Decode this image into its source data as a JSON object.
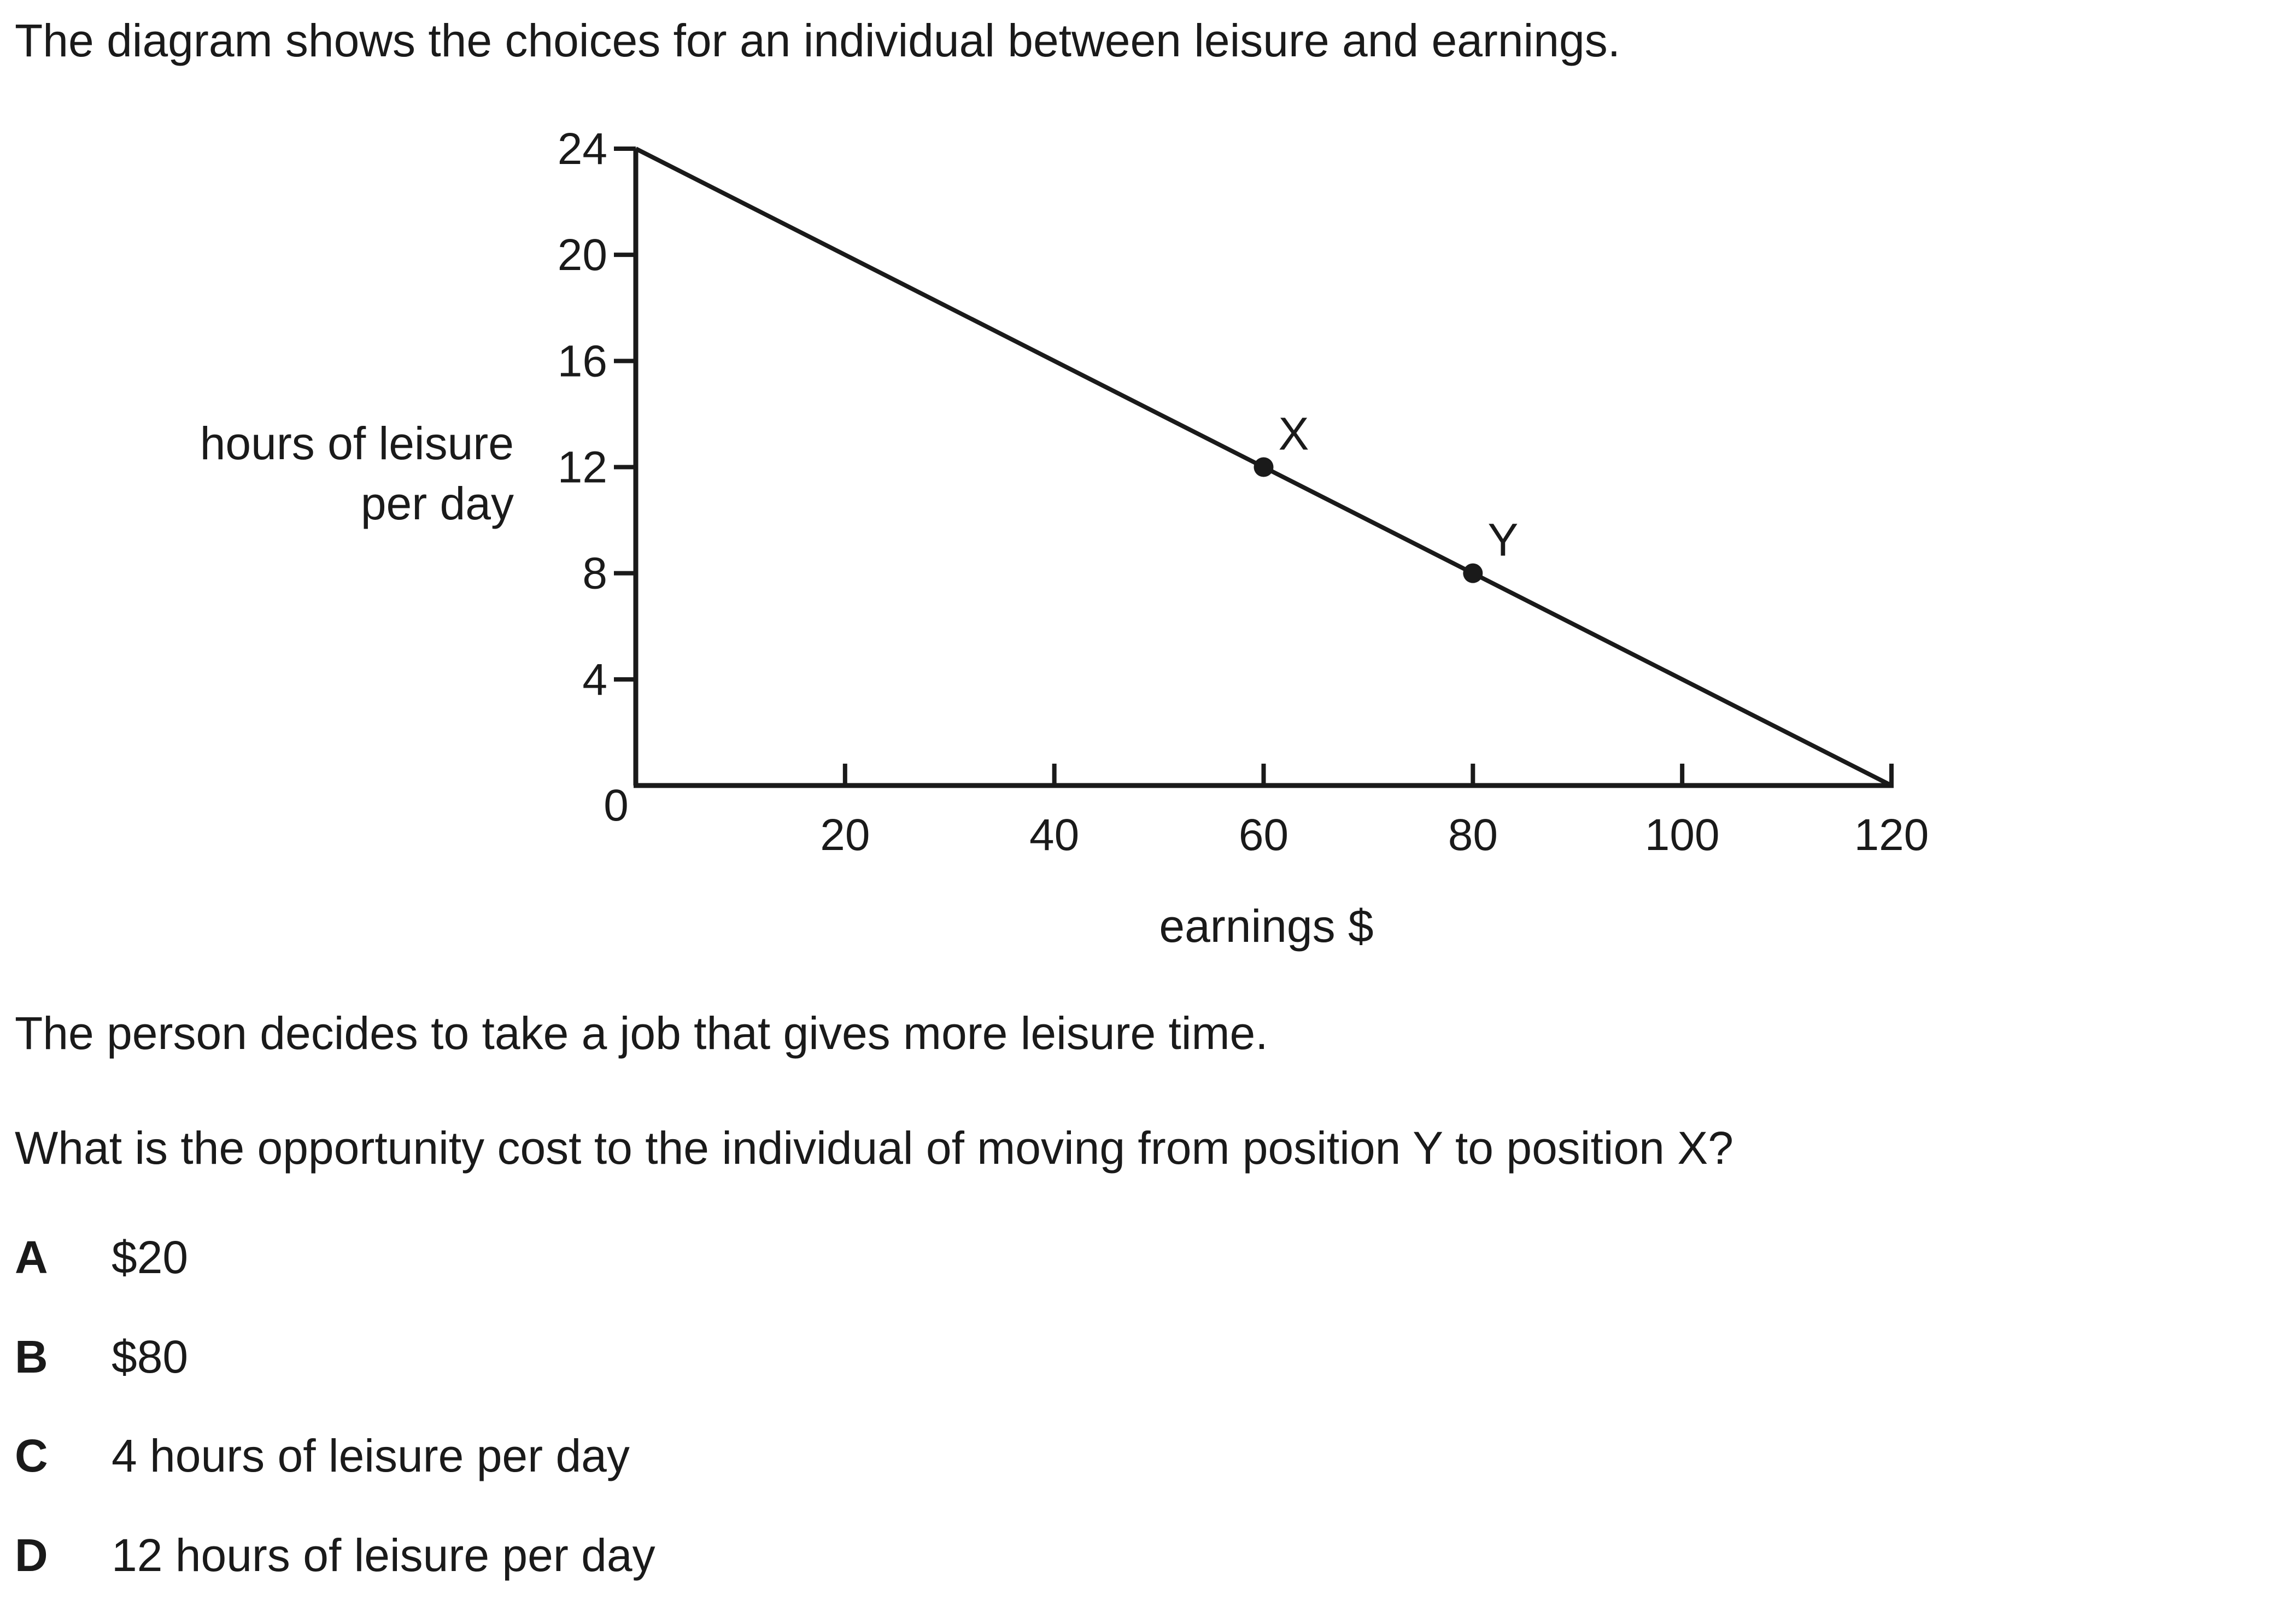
{
  "intro_text": "The diagram shows the choices for an individual between leisure and earnings.",
  "statement_text": "The person decides to take a job that gives more leisure time.",
  "question_text": "What is the opportunity cost to the individual of moving from position Y to position X?",
  "options": [
    {
      "letter": "A",
      "text": "$20"
    },
    {
      "letter": "B",
      "text": "$80"
    },
    {
      "letter": "C",
      "text": "4 hours of leisure per day"
    },
    {
      "letter": "D",
      "text": "12 hours of leisure per day"
    }
  ],
  "chart_data": {
    "type": "line",
    "title": "",
    "xlabel": "earnings $",
    "ylabel_lines": [
      "hours of leisure",
      "per day"
    ],
    "xlim": [
      0,
      120
    ],
    "ylim": [
      0,
      24
    ],
    "x_ticks": [
      20,
      40,
      60,
      80,
      100,
      120
    ],
    "y_ticks": [
      4,
      8,
      12,
      16,
      20,
      24
    ],
    "origin_label": "0",
    "grid": false,
    "series": [
      {
        "x": [
          0,
          120
        ],
        "y": [
          24,
          0
        ]
      }
    ],
    "points": [
      {
        "label": "X",
        "x": 60,
        "y": 12
      },
      {
        "label": "Y",
        "x": 80,
        "y": 8
      }
    ]
  }
}
